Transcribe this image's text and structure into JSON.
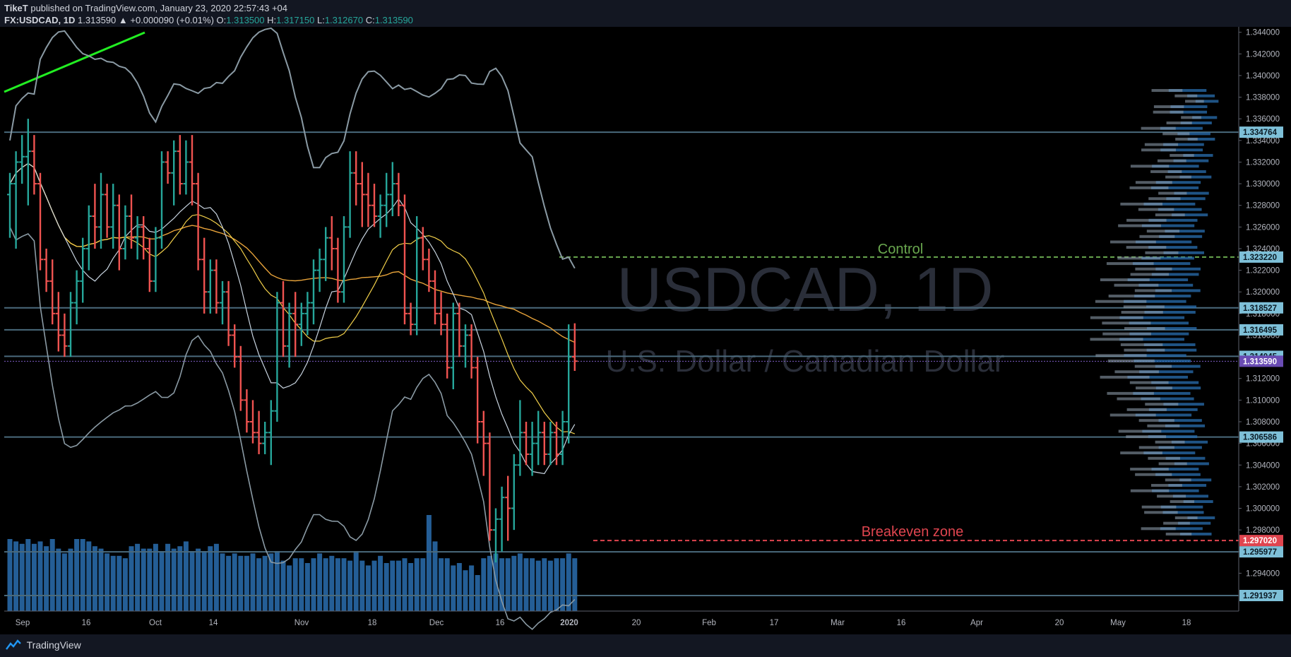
{
  "header": {
    "author": "TikeT",
    "published": "published on TradingView.com, January 23, 2020 22:57:43 +04",
    "symbol": "FX:USDCAD, 1D",
    "price": "1.313590",
    "change": "▲ +0.000090 (+0.01%)",
    "o_label": "O:",
    "o": "1.313500",
    "h_label": "H:",
    "h": "1.317150",
    "l_label": "L:",
    "l": "1.312670",
    "c_label": "C:",
    "c": "1.313590"
  },
  "watermark": {
    "symbol": "USDCAD, 1D",
    "name": "U.S. Dollar / Canadian Dollar"
  },
  "footer": {
    "brand": "TradingView"
  },
  "colors": {
    "up": "#26a69a",
    "down": "#ef5350",
    "volume": "#2a6fb0",
    "level": "#4a6a7c",
    "control": "#6aa84f",
    "breakeven": "#e0454f",
    "trend": "#22ee22",
    "current": "#7c5cc4"
  },
  "chart_data": {
    "type": "line",
    "title": "USDCAD, 1D",
    "subtitle": "U.S. Dollar / Canadian Dollar",
    "y_ticks": [
      "1.344000",
      "1.342000",
      "1.340000",
      "1.338000",
      "1.336000",
      "1.334000",
      "1.332000",
      "1.330000",
      "1.328000",
      "1.326000",
      "1.324000",
      "1.322000",
      "1.320000",
      "1.318000",
      "1.316000",
      "1.314000",
      "1.312000",
      "1.310000",
      "1.308000",
      "1.306000",
      "1.304000",
      "1.302000",
      "1.300000",
      "1.298000",
      "1.296000",
      "1.294000"
    ],
    "ylim": [
      1.2905,
      1.3445
    ],
    "x_ticks": [
      "Sep",
      "16",
      "Oct",
      "14",
      "Nov",
      "18",
      "Dec",
      "16",
      "2020",
      "20",
      "Feb",
      "17",
      "Mar",
      "16",
      "Apr",
      "20",
      "May",
      "18"
    ],
    "levels": [
      {
        "value": 1.334764,
        "label": "1.334764"
      },
      {
        "value": 1.318527,
        "label": "1.318527"
      },
      {
        "value": 1.316495,
        "label": "1.316495"
      },
      {
        "value": 1.314045,
        "label": "1.314045"
      },
      {
        "value": 1.306586,
        "label": "1.306586"
      },
      {
        "value": 1.295977,
        "label": "1.295977"
      },
      {
        "value": 1.291937,
        "label": "1.291937"
      }
    ],
    "control": {
      "value": 1.32322,
      "label": "1.323220",
      "text": "Control"
    },
    "breakeven": {
      "value": 1.29702,
      "label": "1.297020",
      "text": "Breakeven zone"
    },
    "current": {
      "value": 1.31359,
      "label": "1.313590"
    },
    "series": [
      {
        "ohlc": [
          [
            1.329,
            1.331,
            1.325,
            1.33
          ],
          [
            1.33,
            1.333,
            1.324,
            1.332
          ],
          [
            1.332,
            1.3345,
            1.33,
            1.3325
          ],
          [
            1.3325,
            1.336,
            1.328,
            1.333
          ],
          [
            1.333,
            1.3345,
            1.329,
            1.33
          ],
          [
            1.33,
            1.331,
            1.322,
            1.323
          ],
          [
            1.323,
            1.324,
            1.32,
            1.321
          ],
          [
            1.321,
            1.323,
            1.317,
            1.318
          ],
          [
            1.318,
            1.32,
            1.3145,
            1.316
          ],
          [
            1.316,
            1.318,
            1.314,
            1.315
          ],
          [
            1.315,
            1.32,
            1.314,
            1.319
          ],
          [
            1.319,
            1.322,
            1.317,
            1.321
          ],
          [
            1.321,
            1.325,
            1.319,
            1.324
          ],
          [
            1.324,
            1.328,
            1.322,
            1.327
          ],
          [
            1.327,
            1.33,
            1.324,
            1.326
          ],
          [
            1.326,
            1.331,
            1.324,
            1.329
          ],
          [
            1.329,
            1.33,
            1.325,
            1.326
          ],
          [
            1.326,
            1.33,
            1.324,
            1.328
          ],
          [
            1.328,
            1.329,
            1.322,
            1.324
          ],
          [
            1.324,
            1.328,
            1.323,
            1.327
          ],
          [
            1.327,
            1.329,
            1.324,
            1.325
          ],
          [
            1.325,
            1.327,
            1.323,
            1.326
          ],
          [
            1.326,
            1.327,
            1.323,
            1.324
          ],
          [
            1.324,
            1.325,
            1.32,
            1.321
          ],
          [
            1.321,
            1.326,
            1.32,
            1.325
          ],
          [
            1.325,
            1.333,
            1.324,
            1.332
          ],
          [
            1.332,
            1.333,
            1.33,
            1.331
          ],
          [
            1.331,
            1.334,
            1.328,
            1.333
          ],
          [
            1.333,
            1.3345,
            1.329,
            1.33
          ],
          [
            1.33,
            1.334,
            1.329,
            1.332
          ],
          [
            1.332,
            1.3345,
            1.328,
            1.33
          ],
          [
            1.33,
            1.331,
            1.322,
            1.323
          ],
          [
            1.323,
            1.325,
            1.318,
            1.32
          ],
          [
            1.32,
            1.323,
            1.318,
            1.322
          ],
          [
            1.322,
            1.323,
            1.318,
            1.319
          ],
          [
            1.319,
            1.321,
            1.317,
            1.32
          ],
          [
            1.32,
            1.321,
            1.315,
            1.316
          ],
          [
            1.316,
            1.317,
            1.313,
            1.314
          ],
          [
            1.314,
            1.315,
            1.309,
            1.31
          ],
          [
            1.31,
            1.311,
            1.307,
            1.308
          ],
          [
            1.308,
            1.31,
            1.306,
            1.307
          ],
          [
            1.307,
            1.309,
            1.305,
            1.306
          ],
          [
            1.306,
            1.308,
            1.305,
            1.307
          ],
          [
            1.307,
            1.31,
            1.304,
            1.309
          ],
          [
            1.309,
            1.32,
            1.308,
            1.319
          ],
          [
            1.319,
            1.321,
            1.314,
            1.315
          ],
          [
            1.315,
            1.319,
            1.313,
            1.318
          ],
          [
            1.318,
            1.32,
            1.314,
            1.317
          ],
          [
            1.317,
            1.319,
            1.315,
            1.318
          ],
          [
            1.318,
            1.32,
            1.316,
            1.319
          ],
          [
            1.319,
            1.323,
            1.317,
            1.322
          ],
          [
            1.322,
            1.324,
            1.32,
            1.323
          ],
          [
            1.323,
            1.326,
            1.321,
            1.325
          ],
          [
            1.325,
            1.327,
            1.322,
            1.324
          ],
          [
            1.324,
            1.325,
            1.319,
            1.32
          ],
          [
            1.32,
            1.327,
            1.319,
            1.326
          ],
          [
            1.326,
            1.333,
            1.325,
            1.331
          ],
          [
            1.331,
            1.333,
            1.328,
            1.33
          ],
          [
            1.33,
            1.332,
            1.326,
            1.329
          ],
          [
            1.329,
            1.331,
            1.326,
            1.328
          ],
          [
            1.328,
            1.33,
            1.326,
            1.327
          ],
          [
            1.327,
            1.329,
            1.325,
            1.328
          ],
          [
            1.328,
            1.331,
            1.326,
            1.329
          ],
          [
            1.329,
            1.332,
            1.327,
            1.33
          ],
          [
            1.33,
            1.331,
            1.327,
            1.328
          ],
          [
            1.328,
            1.329,
            1.317,
            1.318
          ],
          [
            1.318,
            1.319,
            1.316,
            1.317
          ],
          [
            1.317,
            1.327,
            1.316,
            1.325
          ],
          [
            1.325,
            1.326,
            1.322,
            1.323
          ],
          [
            1.323,
            1.324,
            1.32,
            1.321
          ],
          [
            1.321,
            1.322,
            1.317,
            1.318
          ],
          [
            1.318,
            1.32,
            1.316,
            1.317
          ],
          [
            1.317,
            1.318,
            1.312,
            1.313
          ],
          [
            1.313,
            1.319,
            1.311,
            1.318
          ],
          [
            1.318,
            1.319,
            1.314,
            1.315
          ],
          [
            1.315,
            1.317,
            1.313,
            1.316
          ],
          [
            1.316,
            1.317,
            1.312,
            1.313
          ],
          [
            1.313,
            1.314,
            1.306,
            1.308
          ],
          [
            1.308,
            1.309,
            1.303,
            1.306
          ],
          [
            1.306,
            1.307,
            1.297,
            1.298
          ],
          [
            1.298,
            1.3,
            1.295,
            1.299
          ],
          [
            1.299,
            1.302,
            1.296,
            1.301
          ],
          [
            1.301,
            1.303,
            1.297,
            1.3
          ],
          [
            1.3,
            1.305,
            1.298,
            1.304
          ],
          [
            1.304,
            1.31,
            1.303,
            1.307
          ],
          [
            1.307,
            1.308,
            1.304,
            1.305
          ],
          [
            1.305,
            1.308,
            1.303,
            1.306
          ],
          [
            1.306,
            1.309,
            1.304,
            1.307
          ],
          [
            1.307,
            1.308,
            1.304,
            1.305
          ],
          [
            1.305,
            1.308,
            1.304,
            1.307
          ],
          [
            1.307,
            1.308,
            1.304,
            1.305
          ],
          [
            1.305,
            1.309,
            1.304,
            1.308
          ],
          [
            1.308,
            1.317,
            1.306,
            1.314
          ],
          [
            1.314,
            1.3171,
            1.3127,
            1.3136
          ]
        ]
      },
      {
        "name": "volume",
        "values": [
          30,
          29,
          28,
          30,
          28,
          29,
          27,
          30,
          26,
          24,
          26,
          30,
          30,
          29,
          27,
          26,
          24,
          23,
          23,
          22,
          27,
          28,
          26,
          26,
          28,
          25,
          28,
          26,
          27,
          29,
          25,
          26,
          25,
          27,
          28,
          24,
          23,
          24,
          23,
          23,
          24,
          22,
          23,
          24,
          25,
          21,
          19,
          22,
          22,
          20,
          22,
          24,
          22,
          23,
          22,
          22,
          21,
          25,
          21,
          19,
          21,
          23,
          20,
          21,
          21,
          22,
          20,
          22,
          22,
          40,
          29,
          22,
          22,
          19,
          20,
          17,
          19,
          15,
          22,
          23,
          24,
          22,
          22,
          23,
          24,
          22,
          22,
          21,
          22,
          21,
          22,
          22,
          24,
          22
        ]
      }
    ]
  }
}
